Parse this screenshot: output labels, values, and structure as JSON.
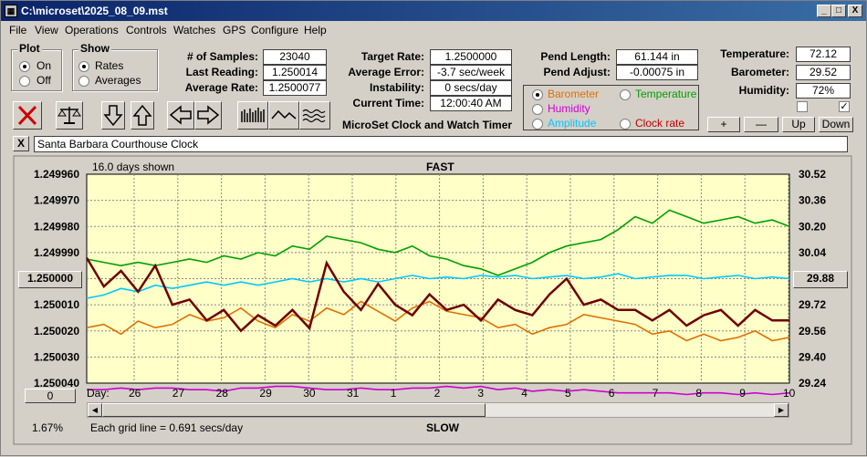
{
  "window": {
    "title": "C:\\microset\\2025_08_09.mst",
    "min": "_",
    "max": "□",
    "close": "X"
  },
  "menu": [
    "File",
    "View",
    "Operations",
    "Controls",
    "Watches",
    "GPS",
    "Configure",
    "Help"
  ],
  "plot_group": {
    "title": "Plot",
    "on": "On",
    "off": "Off",
    "selected": "On"
  },
  "show_group": {
    "title": "Show",
    "rates": "Rates",
    "averages": "Averages",
    "selected": "Rates"
  },
  "stats": {
    "samples_label": "# of Samples:",
    "samples": "23040",
    "last_reading_label": "Last Reading:",
    "last_reading": "1.250014",
    "average_rate_label": "Average Rate:",
    "average_rate": "1.2500077",
    "target_rate_label": "Target Rate:",
    "target_rate": "1.2500000",
    "average_error_label": "Average Error:",
    "average_error": "-3.7 sec/week",
    "instability_label": "Instability:",
    "instability": "0 secs/day",
    "current_time_label": "Current Time:",
    "current_time": "12:00:40 AM",
    "pend_length_label": "Pend Length:",
    "pend_length": "61.144 in",
    "pend_adjust_label": "Pend Adjust:",
    "pend_adjust": "-0.00075 in",
    "temperature_label": "Temperature:",
    "temperature": "72.12",
    "barometer_label": "Barometer:",
    "barometer": "29.52",
    "humidity_label": "Humidity:",
    "humidity": "72%"
  },
  "app_name": "MicroSet Clock and Watch Timer",
  "aux_select": {
    "barometer": "Barometer",
    "temperature": "Temperature",
    "humidity": "Humidity",
    "amplitude": "Amplitude",
    "clock_rate": "Clock rate",
    "selected": "Barometer",
    "colors": {
      "barometer": "#e07000",
      "temperature": "#00a000",
      "humidity": "#d000d0",
      "amplitude": "#00c8ff",
      "clock_rate": "#c00000"
    }
  },
  "scale_buttons": {
    "plus": "+",
    "minus": "—",
    "up": "Up",
    "down": "Down"
  },
  "checkboxes": {
    "first": "",
    "second": "✓"
  },
  "clock_close": "X",
  "clock_name": "Santa Barbara Courthouse Clock",
  "chart_header": {
    "days_shown": "16.0 days shown",
    "fast": "FAST",
    "slow": "SLOW",
    "grid_note": "Each grid line = 0.691 secs/day",
    "percent": "1.67%",
    "left_readout": "1.250000",
    "right_readout": "29.88",
    "scroll_box": "0",
    "day_label": "Day:"
  },
  "chart_data": {
    "type": "line",
    "background": "#ffffc8",
    "x_tick_labels": [
      "26",
      "27",
      "28",
      "29",
      "30",
      "31",
      "1",
      "2",
      "3",
      "4",
      "5",
      "6",
      "7",
      "8",
      "9",
      "10"
    ],
    "y_left": {
      "ticks": [
        "1.249960",
        "1.249970",
        "1.249980",
        "1.249990",
        "1.250000",
        "1.250010",
        "1.250020",
        "1.250030",
        "1.250040"
      ],
      "inverted": true
    },
    "y_right": {
      "ticks": [
        "30.52",
        "30.36",
        "30.20",
        "30.04",
        "29.88",
        "29.72",
        "29.56",
        "29.40",
        "29.24"
      ]
    },
    "series": [
      {
        "name": "Humidity",
        "color": "#d000d0",
        "points": [
          [
            0,
            29.2
          ],
          [
            1,
            29.2
          ],
          [
            2,
            29.21
          ],
          [
            3,
            29.2
          ],
          [
            4,
            29.21
          ],
          [
            5,
            29.21
          ],
          [
            6,
            29.2
          ],
          [
            7,
            29.2
          ],
          [
            8,
            29.19
          ],
          [
            9,
            29.21
          ],
          [
            10,
            29.21
          ],
          [
            11,
            29.22
          ],
          [
            12,
            29.22
          ],
          [
            13,
            29.21
          ],
          [
            14,
            29.2
          ],
          [
            15,
            29.2
          ],
          [
            16,
            29.21
          ],
          [
            17,
            29.2
          ],
          [
            18,
            29.2
          ],
          [
            19,
            29.21
          ],
          [
            20,
            29.21
          ],
          [
            21,
            29.22
          ],
          [
            22,
            29.21
          ],
          [
            23,
            29.22
          ],
          [
            24,
            29.2
          ],
          [
            25,
            29.21
          ],
          [
            26,
            29.19
          ],
          [
            27,
            29.2
          ],
          [
            28,
            29.19
          ],
          [
            29,
            29.2
          ],
          [
            30,
            29.19
          ],
          [
            31,
            29.18
          ],
          [
            32,
            29.18
          ],
          [
            33,
            29.18
          ],
          [
            34,
            29.18
          ],
          [
            35,
            29.17
          ],
          [
            36,
            29.18
          ],
          [
            37,
            29.18
          ],
          [
            38,
            29.17
          ],
          [
            39,
            29.18
          ],
          [
            40,
            29.17
          ],
          [
            41,
            29.18
          ]
        ]
      },
      {
        "name": "Temperature",
        "color": "#00a000",
        "points": [
          [
            0,
            30.0
          ],
          [
            1,
            29.98
          ],
          [
            2,
            29.96
          ],
          [
            3,
            29.98
          ],
          [
            4,
            29.96
          ],
          [
            5,
            29.98
          ],
          [
            6,
            30.0
          ],
          [
            7,
            29.98
          ],
          [
            8,
            30.02
          ],
          [
            9,
            30.0
          ],
          [
            10,
            30.04
          ],
          [
            11,
            30.02
          ],
          [
            12,
            30.08
          ],
          [
            13,
            30.06
          ],
          [
            14,
            30.14
          ],
          [
            15,
            30.12
          ],
          [
            16,
            30.1
          ],
          [
            17,
            30.06
          ],
          [
            18,
            30.04
          ],
          [
            19,
            30.08
          ],
          [
            20,
            30.02
          ],
          [
            21,
            30.0
          ],
          [
            22,
            29.96
          ],
          [
            23,
            29.94
          ],
          [
            24,
            29.9
          ],
          [
            25,
            29.94
          ],
          [
            26,
            29.98
          ],
          [
            27,
            30.04
          ],
          [
            28,
            30.08
          ],
          [
            29,
            30.1
          ],
          [
            30,
            30.12
          ],
          [
            31,
            30.18
          ],
          [
            32,
            30.26
          ],
          [
            33,
            30.22
          ],
          [
            34,
            30.3
          ],
          [
            35,
            30.26
          ],
          [
            36,
            30.22
          ],
          [
            37,
            30.24
          ],
          [
            38,
            30.26
          ],
          [
            39,
            30.22
          ],
          [
            40,
            30.24
          ],
          [
            41,
            30.2
          ]
        ]
      },
      {
        "name": "Amplitude",
        "color": "#00c8ff",
        "points": [
          [
            0,
            29.76
          ],
          [
            1,
            29.78
          ],
          [
            2,
            29.82
          ],
          [
            3,
            29.8
          ],
          [
            4,
            29.84
          ],
          [
            5,
            29.82
          ],
          [
            6,
            29.84
          ],
          [
            7,
            29.86
          ],
          [
            8,
            29.84
          ],
          [
            9,
            29.86
          ],
          [
            10,
            29.84
          ],
          [
            11,
            29.86
          ],
          [
            12,
            29.88
          ],
          [
            13,
            29.86
          ],
          [
            14,
            29.88
          ],
          [
            15,
            29.86
          ],
          [
            16,
            29.88
          ],
          [
            17,
            29.86
          ],
          [
            18,
            29.88
          ],
          [
            19,
            29.9
          ],
          [
            20,
            29.88
          ],
          [
            21,
            29.89
          ],
          [
            22,
            29.88
          ],
          [
            23,
            29.9
          ],
          [
            24,
            29.89
          ],
          [
            25,
            29.9
          ],
          [
            26,
            29.88
          ],
          [
            27,
            29.89
          ],
          [
            28,
            29.9
          ],
          [
            29,
            29.88
          ],
          [
            30,
            29.89
          ],
          [
            31,
            29.91
          ],
          [
            32,
            29.88
          ],
          [
            33,
            29.89
          ],
          [
            34,
            29.9
          ],
          [
            35,
            29.9
          ],
          [
            36,
            29.88
          ],
          [
            37,
            29.89
          ],
          [
            38,
            29.9
          ],
          [
            39,
            29.88
          ],
          [
            40,
            29.89
          ],
          [
            41,
            29.88
          ]
        ]
      },
      {
        "name": "Barometer",
        "color": "#e07000",
        "points": [
          [
            0,
            29.58
          ],
          [
            1,
            29.6
          ],
          [
            2,
            29.54
          ],
          [
            3,
            29.62
          ],
          [
            4,
            29.58
          ],
          [
            5,
            29.6
          ],
          [
            6,
            29.66
          ],
          [
            7,
            29.62
          ],
          [
            8,
            29.64
          ],
          [
            9,
            29.7
          ],
          [
            10,
            29.62
          ],
          [
            11,
            29.58
          ],
          [
            12,
            29.66
          ],
          [
            13,
            29.62
          ],
          [
            14,
            29.7
          ],
          [
            15,
            29.66
          ],
          [
            16,
            29.74
          ],
          [
            17,
            29.68
          ],
          [
            18,
            29.62
          ],
          [
            19,
            29.7
          ],
          [
            20,
            29.74
          ],
          [
            21,
            29.68
          ],
          [
            22,
            29.66
          ],
          [
            23,
            29.64
          ],
          [
            24,
            29.58
          ],
          [
            25,
            29.6
          ],
          [
            26,
            29.54
          ],
          [
            27,
            29.58
          ],
          [
            28,
            29.6
          ],
          [
            29,
            29.66
          ],
          [
            30,
            29.64
          ],
          [
            31,
            29.62
          ],
          [
            32,
            29.6
          ],
          [
            33,
            29.54
          ],
          [
            34,
            29.56
          ],
          [
            35,
            29.5
          ],
          [
            36,
            29.54
          ],
          [
            37,
            29.5
          ],
          [
            38,
            29.52
          ],
          [
            39,
            29.56
          ],
          [
            40,
            29.5
          ],
          [
            41,
            29.52
          ]
        ]
      },
      {
        "name": "Clock rate",
        "color": "#6e0000",
        "points": [
          [
            0,
            1.249992
          ],
          [
            1,
            1.250003
          ],
          [
            2,
            1.249997
          ],
          [
            3,
            1.250005
          ],
          [
            4,
            1.249995
          ],
          [
            5,
            1.25001
          ],
          [
            6,
            1.250008
          ],
          [
            7,
            1.250016
          ],
          [
            8,
            1.250012
          ],
          [
            9,
            1.25002
          ],
          [
            10,
            1.250014
          ],
          [
            11,
            1.250018
          ],
          [
            12,
            1.250012
          ],
          [
            13,
            1.250019
          ],
          [
            14,
            1.249994
          ],
          [
            15,
            1.250005
          ],
          [
            16,
            1.250012
          ],
          [
            17,
            1.250002
          ],
          [
            18,
            1.25001
          ],
          [
            19,
            1.250014
          ],
          [
            20,
            1.250006
          ],
          [
            21,
            1.250012
          ],
          [
            22,
            1.25001
          ],
          [
            23,
            1.250016
          ],
          [
            24,
            1.250008
          ],
          [
            25,
            1.250012
          ],
          [
            26,
            1.250014
          ],
          [
            27,
            1.250006
          ],
          [
            28,
            1.25
          ],
          [
            29,
            1.25001
          ],
          [
            30,
            1.250008
          ],
          [
            31,
            1.250012
          ],
          [
            32,
            1.250012
          ],
          [
            33,
            1.250016
          ],
          [
            34,
            1.250012
          ],
          [
            35,
            1.250018
          ],
          [
            36,
            1.250014
          ],
          [
            37,
            1.250012
          ],
          [
            38,
            1.250018
          ],
          [
            39,
            1.250012
          ],
          [
            40,
            1.250016
          ],
          [
            41,
            1.250016
          ]
        ]
      }
    ]
  }
}
